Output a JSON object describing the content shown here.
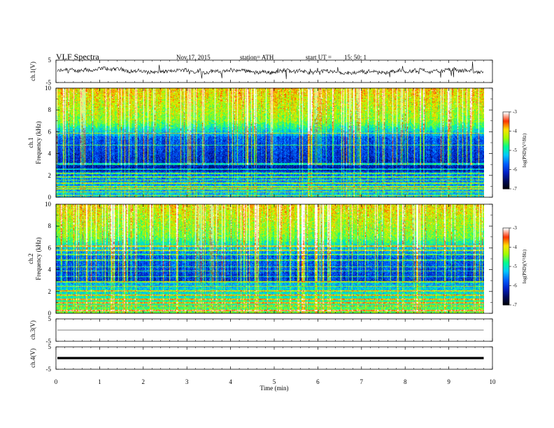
{
  "header": {
    "title": "VLF  Spectra",
    "date": "Nov.17, 2015",
    "station": "station= ATH",
    "start_label": "start  UT  =",
    "start_value": "15: 50: 1"
  },
  "chart_data": [
    {
      "id": "ch1-waveform",
      "type": "line",
      "ylabel": "ch.1(V)",
      "ylim": [
        -5,
        5
      ],
      "yticks": [
        "5",
        "-5"
      ],
      "xlim": [
        0,
        10
      ],
      "trace_extent_min": 9.8,
      "line_color": "#000000"
    },
    {
      "id": "ch1-spectrogram",
      "type": "heatmap",
      "ylabel": "ch.1",
      "ylabel2": "Frequency  (kHz)",
      "ylim": [
        0,
        10
      ],
      "yticks": [
        "0",
        "2",
        "4",
        "6",
        "8",
        "10"
      ],
      "xlim": [
        0,
        10
      ],
      "colorbar": {
        "label": "log(PSD)(V²/Hz)",
        "range": [
          -7,
          -3
        ],
        "ticks": [
          "-3",
          "-4",
          "-5",
          "-6",
          "-7"
        ]
      }
    },
    {
      "id": "ch2-spectrogram",
      "type": "heatmap",
      "ylabel": "ch.2",
      "ylabel2": "Frequency  (kHz)",
      "ylim": [
        0,
        10
      ],
      "yticks": [
        "0",
        "2",
        "4",
        "6",
        "8",
        "10"
      ],
      "xlim": [
        0,
        10
      ],
      "colorbar": {
        "label": "log(PSD)(V²/Hz)",
        "range": [
          -7,
          -3
        ],
        "ticks": [
          "-3",
          "-4",
          "-5",
          "-6",
          "-7"
        ]
      }
    },
    {
      "id": "ch3-waveform",
      "type": "line",
      "ylabel": "ch.3(V)",
      "ylim": [
        -5,
        5
      ],
      "yticks": [
        "5",
        "-5"
      ],
      "xlim": [
        0,
        10
      ],
      "level": 0,
      "line_color": "#555555"
    },
    {
      "id": "ch4-waveform",
      "type": "line",
      "ylabel": "ch.4(V)",
      "ylim": [
        -5,
        5
      ],
      "yticks": [
        "5",
        "-5"
      ],
      "xlim": [
        0,
        10
      ],
      "level": 0,
      "line_color": "#000000"
    }
  ],
  "xaxis": {
    "label": "Time  (min)",
    "ticks": [
      "0",
      "1",
      "2",
      "3",
      "4",
      "5",
      "6",
      "7",
      "8",
      "9",
      "10"
    ],
    "range": [
      0,
      10
    ]
  },
  "colormap": [
    "#000000",
    "#000a5a",
    "#0020c8",
    "#0060ff",
    "#00c8ff",
    "#00ff90",
    "#a0ff00",
    "#ffe000",
    "#ff3000",
    "#ffffff"
  ]
}
